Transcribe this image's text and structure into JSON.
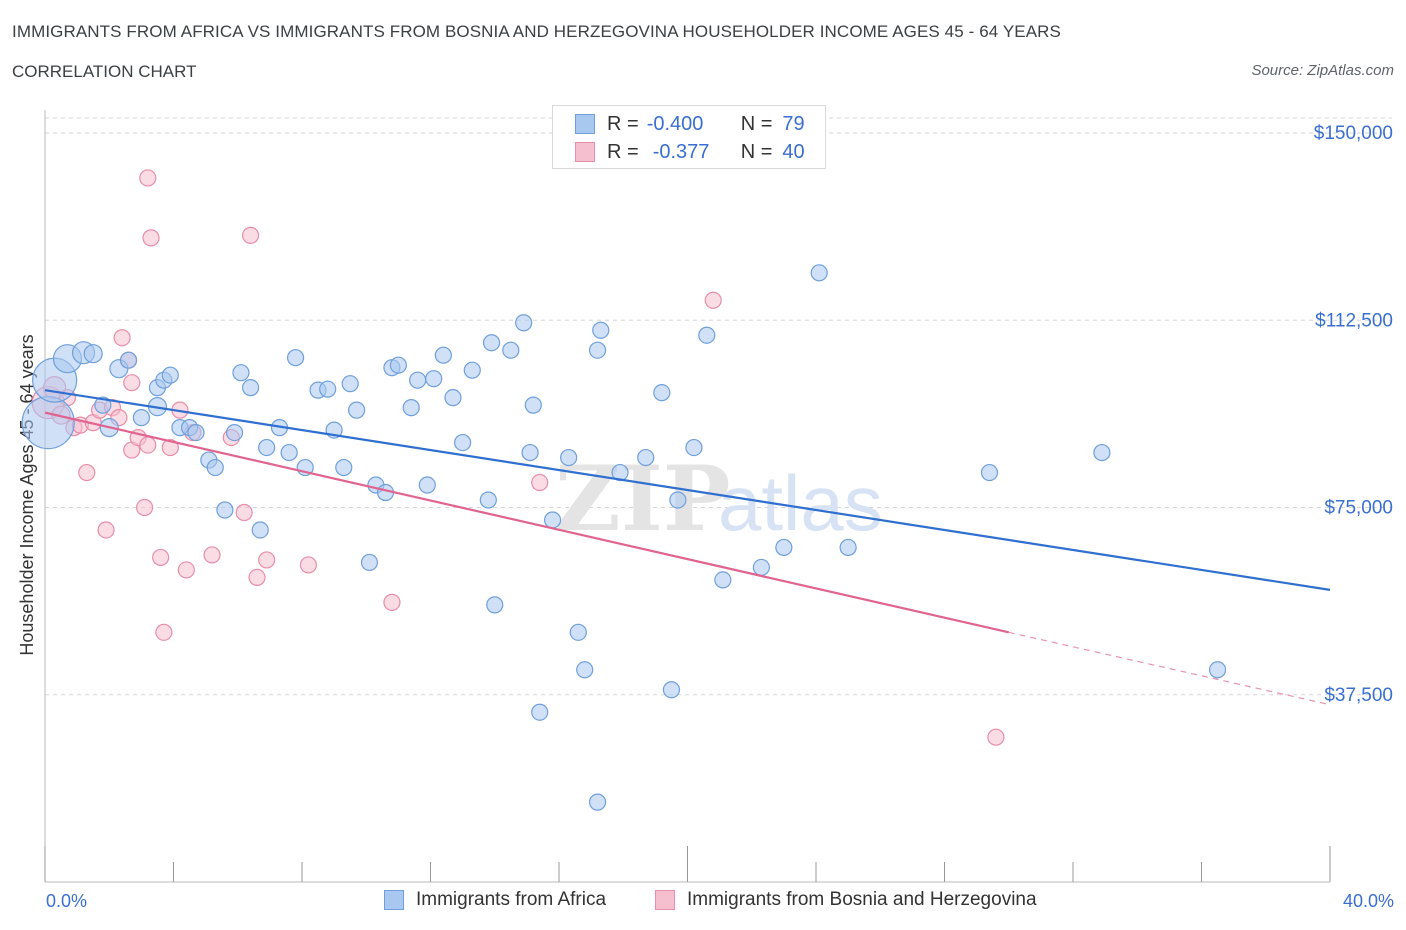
{
  "header": {
    "title": "IMMIGRANTS FROM AFRICA VS IMMIGRANTS FROM BOSNIA AND HERZEGOVINA HOUSEHOLDER INCOME AGES 45 - 64 YEARS",
    "subtitle": "CORRELATION CHART",
    "source": "Source: ZipAtlas.com"
  },
  "watermark": "ZIPatlas",
  "legend": {
    "r_label": "R =",
    "n_label": "N =",
    "series": [
      {
        "r": "-0.400",
        "n": "79"
      },
      {
        "r": "-0.377",
        "n": "40"
      }
    ]
  },
  "colors": {
    "africa_fill": "#a9c8f0",
    "africa_stroke": "#6f9fdc",
    "africa_line": "#2f6fd0",
    "bosnia_fill": "#f6bfd0",
    "bosnia_stroke": "#e88daa",
    "bosnia_line": "#e0648f",
    "tick_text": "#3a6fd1",
    "grid": "#d6d6d6"
  },
  "chart_data": {
    "type": "scatter",
    "title": "IMMIGRANTS FROM AFRICA VS IMMIGRANTS FROM BOSNIA AND HERZEGOVINA HOUSEHOLDER INCOME AGES 45 - 64 YEARS",
    "xlabel": "",
    "ylabel": "Householder Income Ages 45 - 64 years",
    "xlim": [
      0,
      40
    ],
    "ylim": [
      0,
      150000
    ],
    "x_tick_labels": [
      "0.0%",
      "40.0%"
    ],
    "y_ticks": [
      37500,
      75000,
      112500,
      150000
    ],
    "y_tick_labels": [
      "$37,500",
      "$75,000",
      "$112,500",
      "$150,000"
    ],
    "grid": true,
    "legend_position": "top-center",
    "series": [
      {
        "name": "Immigrants from Africa",
        "color": "#a9c8f0",
        "trend": {
          "x": [
            0,
            40
          ],
          "y": [
            98500,
            58500
          ]
        },
        "points": [
          [
            0.1,
            92000,
            26
          ],
          [
            0.3,
            100500,
            22
          ],
          [
            0.7,
            104800,
            14
          ],
          [
            1.2,
            106000,
            11
          ],
          [
            1.5,
            105800,
            9
          ],
          [
            1.8,
            95500,
            8
          ],
          [
            2.0,
            91000,
            9
          ],
          [
            2.3,
            102800,
            9
          ],
          [
            2.6,
            104500,
            8
          ],
          [
            3.0,
            93000,
            8
          ],
          [
            3.5,
            95200,
            9
          ],
          [
            3.5,
            99000,
            8
          ],
          [
            3.7,
            100500,
            8
          ],
          [
            3.9,
            101500,
            8
          ],
          [
            4.2,
            91000,
            8
          ],
          [
            4.5,
            91000,
            8
          ],
          [
            4.7,
            90000,
            8
          ],
          [
            5.1,
            84500,
            8
          ],
          [
            5.3,
            83000,
            8
          ],
          [
            5.6,
            74500,
            8
          ],
          [
            5.9,
            90000,
            8
          ],
          [
            6.1,
            102000,
            8
          ],
          [
            6.4,
            99000,
            8
          ],
          [
            6.7,
            70500,
            8
          ],
          [
            6.9,
            87000,
            8
          ],
          [
            7.3,
            91000,
            8
          ],
          [
            7.6,
            86000,
            8
          ],
          [
            7.8,
            105000,
            8
          ],
          [
            8.1,
            83000,
            8
          ],
          [
            8.5,
            98500,
            8
          ],
          [
            8.8,
            98700,
            8
          ],
          [
            9.0,
            90500,
            8
          ],
          [
            9.3,
            83000,
            8
          ],
          [
            9.5,
            99800,
            8
          ],
          [
            9.7,
            94500,
            8
          ],
          [
            10.1,
            64000,
            8
          ],
          [
            10.3,
            79500,
            8
          ],
          [
            10.6,
            78000,
            8
          ],
          [
            10.8,
            103000,
            8
          ],
          [
            11.0,
            103500,
            8
          ],
          [
            11.4,
            95000,
            8
          ],
          [
            11.6,
            100500,
            8
          ],
          [
            11.9,
            79500,
            8
          ],
          [
            12.1,
            100800,
            8
          ],
          [
            12.4,
            105500,
            8
          ],
          [
            12.7,
            97000,
            8
          ],
          [
            13.0,
            88000,
            8
          ],
          [
            13.3,
            102500,
            8
          ],
          [
            13.8,
            76500,
            8
          ],
          [
            13.9,
            108000,
            8
          ],
          [
            14.0,
            55500,
            8
          ],
          [
            14.5,
            106500,
            8
          ],
          [
            14.9,
            112000,
            8
          ],
          [
            15.1,
            86000,
            8
          ],
          [
            15.2,
            95500,
            8
          ],
          [
            15.4,
            34000,
            8
          ],
          [
            15.8,
            72500,
            8
          ],
          [
            16.3,
            85000,
            8
          ],
          [
            16.6,
            50000,
            8
          ],
          [
            16.8,
            42500,
            8
          ],
          [
            17.2,
            106500,
            8
          ],
          [
            17.2,
            16000,
            8
          ],
          [
            17.3,
            110500,
            8
          ],
          [
            17.9,
            82000,
            8
          ],
          [
            18.7,
            85000,
            8
          ],
          [
            19.2,
            98000,
            8
          ],
          [
            19.5,
            38500,
            8
          ],
          [
            19.7,
            76500,
            8
          ],
          [
            20.2,
            87000,
            8
          ],
          [
            20.6,
            109500,
            8
          ],
          [
            21.1,
            60500,
            8
          ],
          [
            22.3,
            63000,
            8
          ],
          [
            23.0,
            67000,
            8
          ],
          [
            24.1,
            122000,
            8
          ],
          [
            25.0,
            67000,
            8
          ],
          [
            29.4,
            82000,
            8
          ],
          [
            32.9,
            86000,
            8
          ],
          [
            36.5,
            42500,
            8
          ]
        ]
      },
      {
        "name": "Immigrants from Bosnia and Herzegovina",
        "color": "#f6bfd0",
        "trend": {
          "x": [
            0,
            30
          ],
          "y": [
            94000,
            50000
          ]
        },
        "trend_dashed": {
          "x": [
            30,
            40
          ],
          "y": [
            50000,
            35500
          ]
        },
        "points": [
          [
            0.1,
            96000,
            16
          ],
          [
            0.3,
            99000,
            11
          ],
          [
            0.5,
            93500,
            9
          ],
          [
            0.7,
            97000,
            8
          ],
          [
            0.9,
            91000,
            8
          ],
          [
            1.1,
            91500,
            8
          ],
          [
            1.3,
            82000,
            8
          ],
          [
            1.5,
            92000,
            8
          ],
          [
            1.7,
            94500,
            8
          ],
          [
            1.9,
            70500,
            8
          ],
          [
            2.1,
            95000,
            8
          ],
          [
            2.3,
            93000,
            8
          ],
          [
            2.4,
            109000,
            8
          ],
          [
            2.6,
            104500,
            8
          ],
          [
            2.7,
            100000,
            8
          ],
          [
            2.7,
            86500,
            8
          ],
          [
            2.9,
            89000,
            8
          ],
          [
            3.1,
            75000,
            8
          ],
          [
            3.2,
            87500,
            8
          ],
          [
            3.2,
            141000,
            8
          ],
          [
            3.3,
            129000,
            8
          ],
          [
            3.6,
            65000,
            8
          ],
          [
            3.7,
            50000,
            8
          ],
          [
            3.9,
            87000,
            8
          ],
          [
            4.2,
            94500,
            8
          ],
          [
            4.4,
            62500,
            8
          ],
          [
            4.6,
            90000,
            8
          ],
          [
            5.2,
            65500,
            8
          ],
          [
            5.8,
            89000,
            8
          ],
          [
            6.2,
            74000,
            8
          ],
          [
            6.4,
            129500,
            8
          ],
          [
            6.6,
            61000,
            8
          ],
          [
            6.9,
            64500,
            8
          ],
          [
            8.2,
            63500,
            8
          ],
          [
            10.8,
            56000,
            8
          ],
          [
            15.4,
            80000,
            8
          ],
          [
            20.8,
            116500,
            8
          ],
          [
            29.6,
            29000,
            8
          ]
        ]
      }
    ]
  }
}
